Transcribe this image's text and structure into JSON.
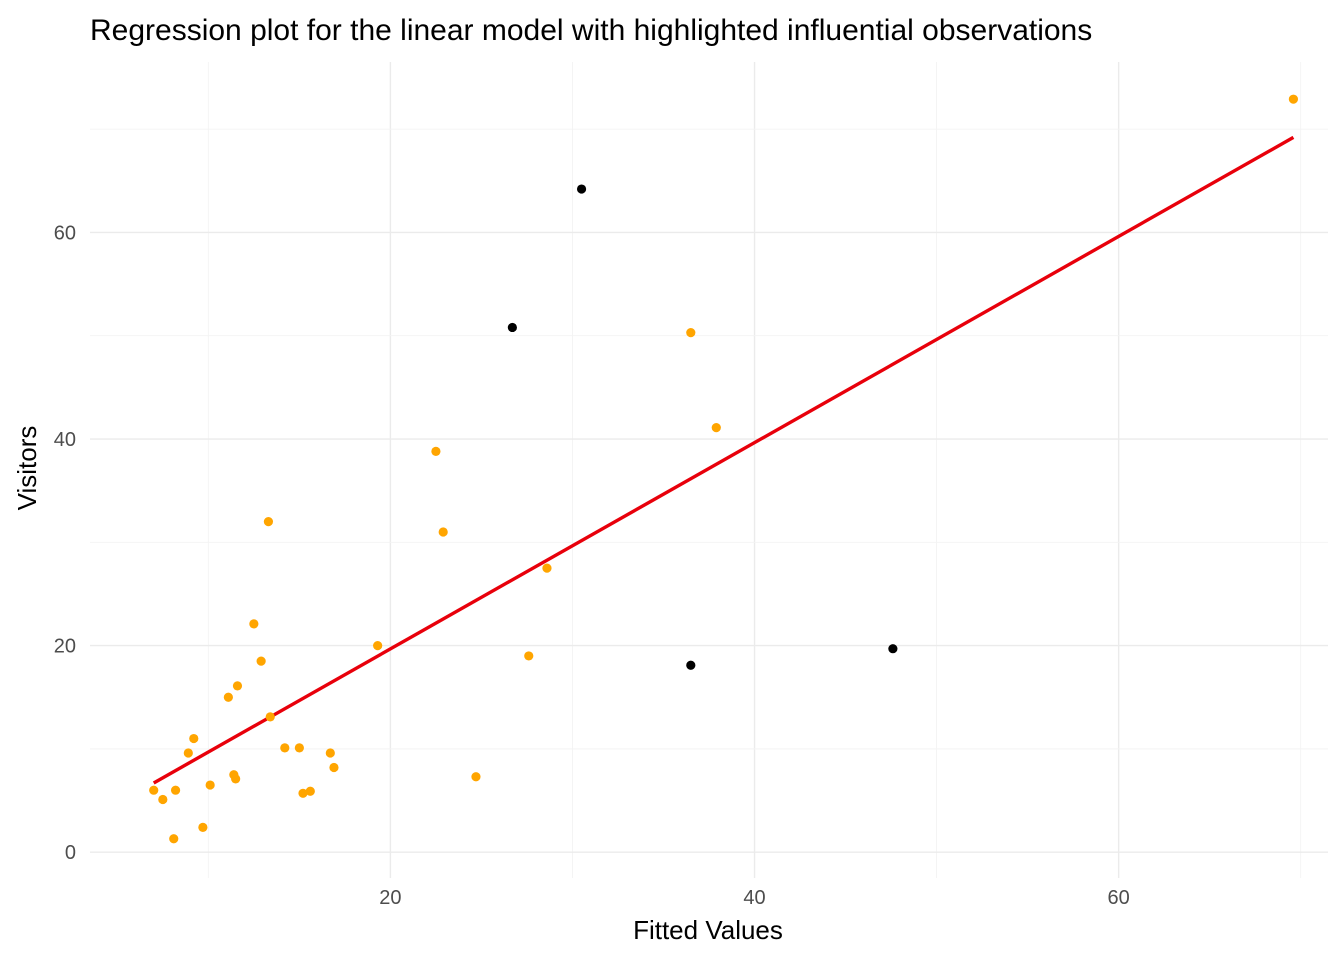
{
  "chart_data": {
    "type": "scatter",
    "title": "Regression plot for the linear model with highlighted influential observations",
    "xlabel": "Fitted Values",
    "ylabel": "Visitors",
    "xlim": [
      3.5,
      71.5
    ],
    "ylim": [
      -2.5,
      76.5
    ],
    "x_ticks": [
      20,
      40,
      60
    ],
    "y_ticks": [
      0,
      20,
      40,
      60
    ],
    "x_tick_labels": [
      "20",
      "40",
      "60"
    ],
    "y_tick_labels": [
      "0",
      "20",
      "40",
      "60"
    ],
    "grid": true,
    "colors": {
      "normal": "#FFA500",
      "influential": "#000000",
      "fit_line": "#E8000B"
    },
    "series": [
      {
        "points": [
          [
            7.0,
            6.0
          ],
          [
            7.5,
            5.1
          ],
          [
            8.1,
            1.3
          ],
          [
            8.2,
            6.0
          ],
          [
            8.9,
            9.6
          ],
          [
            9.2,
            11.0
          ],
          [
            9.7,
            2.4
          ],
          [
            10.1,
            6.5
          ],
          [
            11.1,
            15.0
          ],
          [
            11.4,
            7.5
          ],
          [
            11.5,
            7.1
          ],
          [
            11.6,
            16.1
          ],
          [
            12.5,
            22.1
          ],
          [
            12.9,
            18.5
          ],
          [
            13.3,
            32.0
          ],
          [
            13.4,
            13.1
          ],
          [
            14.2,
            10.1
          ],
          [
            15.0,
            10.1
          ],
          [
            15.2,
            5.7
          ],
          [
            15.6,
            5.9
          ],
          [
            16.7,
            9.6
          ],
          [
            16.9,
            8.2
          ],
          [
            19.3,
            20.0
          ],
          [
            22.5,
            38.8
          ],
          [
            22.9,
            31.0
          ],
          [
            24.7,
            7.3
          ],
          [
            27.6,
            19.0
          ],
          [
            28.6,
            27.5
          ],
          [
            36.5,
            50.3
          ],
          [
            37.9,
            41.1
          ],
          [
            69.6,
            72.9
          ]
        ]
      },
      {
        "points": [
          [
            26.7,
            50.8
          ],
          [
            30.5,
            64.2
          ],
          [
            36.5,
            18.1
          ],
          [
            47.6,
            19.7
          ]
        ]
      }
    ],
    "fit_line": [
      [
        7.0,
        6.7
      ],
      [
        69.6,
        69.2
      ]
    ]
  }
}
